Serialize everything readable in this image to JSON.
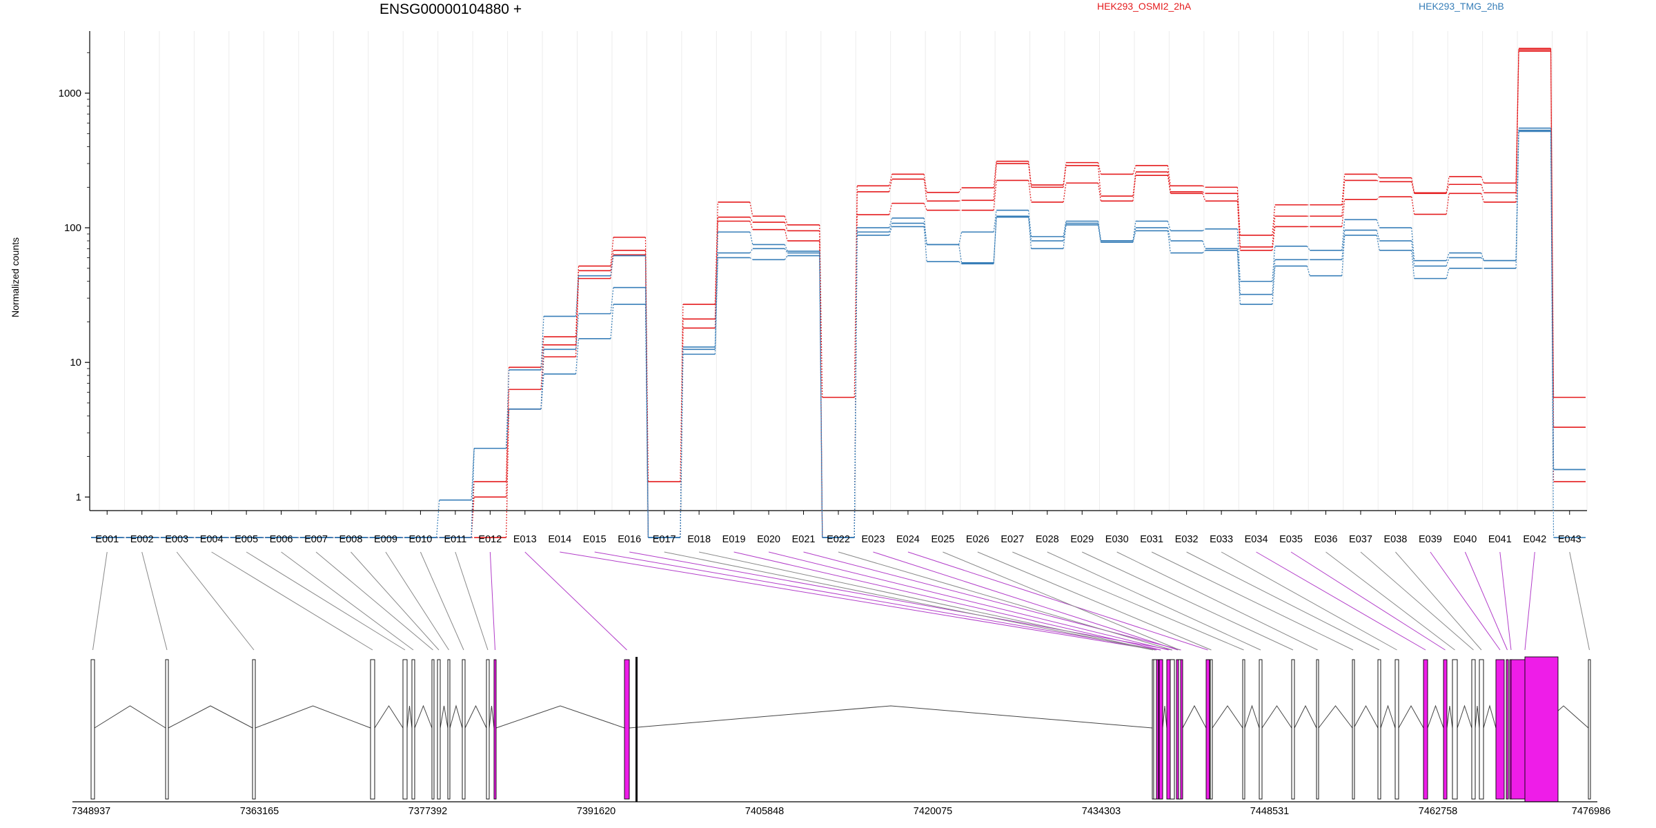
{
  "chart_data": {
    "type": "line",
    "title": "ENSG00000104880 +",
    "ylabel": "Normalized counts",
    "yscale": "log",
    "y_ticks": [
      1,
      10,
      100,
      1000
    ],
    "y_tick_labels": [
      "1",
      "10",
      "100",
      "1000"
    ],
    "categories": [
      "E001",
      "E002",
      "E003",
      "E004",
      "E005",
      "E006",
      "E007",
      "E008",
      "E009",
      "E010",
      "E011",
      "E012",
      "E013",
      "E014",
      "E015",
      "E016",
      "E017",
      "E018",
      "E019",
      "E020",
      "E021",
      "E022",
      "E023",
      "E024",
      "E025",
      "E026",
      "E027",
      "E028",
      "E029",
      "E030",
      "E031",
      "E032",
      "E033",
      "E034",
      "E035",
      "E036",
      "E037",
      "E038",
      "E039",
      "E040",
      "E041",
      "E042",
      "E043"
    ],
    "legend": [
      "HEK293_OSMI2_2hA",
      "HEK293_TMG_2hB"
    ],
    "series_colors": {
      "HEK293_OSMI2_2hA": "#e41a1c",
      "HEK293_TMG_2hB": "#377eb8"
    },
    "series": [
      {
        "group": "HEK293_OSMI2_2hA",
        "values": [
          0.5,
          0.5,
          0.5,
          0.5,
          0.5,
          0.5,
          0.5,
          0.5,
          0.5,
          0.5,
          0.5,
          1.3,
          9.2,
          15.5,
          52,
          85,
          1.3,
          27,
          155,
          122,
          105,
          5.5,
          205,
          250,
          183,
          198,
          312,
          208,
          305,
          250,
          290,
          205,
          200,
          88,
          148,
          148,
          250,
          235,
          182,
          240,
          215,
          2150,
          5.5
        ]
      },
      {
        "group": "HEK293_OSMI2_2hA",
        "values": [
          0.5,
          0.5,
          0.5,
          0.5,
          0.5,
          0.5,
          0.5,
          0.5,
          0.5,
          0.5,
          0.5,
          1.0,
          6.3,
          13.5,
          48,
          68,
          0.5,
          21,
          120,
          110,
          95,
          0.5,
          185,
          230,
          158,
          160,
          300,
          200,
          290,
          172,
          260,
          185,
          180,
          72,
          122,
          122,
          225,
          220,
          180,
          210,
          182,
          2100,
          3.3
        ]
      },
      {
        "group": "HEK293_OSMI2_2hA",
        "values": [
          0.5,
          0.5,
          0.5,
          0.5,
          0.5,
          0.5,
          0.5,
          0.5,
          0.5,
          0.5,
          0.5,
          0.5,
          4.5,
          11.0,
          42,
          63,
          0.5,
          18,
          112,
          97,
          80,
          0.5,
          125,
          152,
          135,
          135,
          225,
          155,
          215,
          158,
          245,
          180,
          158,
          68,
          102,
          102,
          162,
          170,
          126,
          180,
          155,
          2050,
          1.3
        ]
      },
      {
        "group": "HEK293_TMG_2hB",
        "values": [
          0.5,
          0.5,
          0.5,
          0.5,
          0.5,
          0.5,
          0.5,
          0.5,
          0.5,
          0.5,
          0.5,
          2.3,
          8.8,
          22,
          44,
          62,
          0.5,
          13,
          93,
          75,
          67,
          0.5,
          100,
          118,
          75,
          93,
          135,
          86,
          112,
          80,
          112,
          95,
          98,
          40,
          73,
          68,
          115,
          100,
          57,
          65,
          57,
          550,
          1.6
        ]
      },
      {
        "group": "HEK293_TMG_2hB",
        "values": [
          0.5,
          0.5,
          0.5,
          0.5,
          0.5,
          0.5,
          0.5,
          0.5,
          0.5,
          0.5,
          0.95,
          2.3,
          4.5,
          12.5,
          23,
          36,
          0.5,
          12.5,
          65,
          70,
          65,
          0.5,
          93,
          108,
          75,
          55,
          122,
          80,
          108,
          80,
          100,
          80,
          70,
          32,
          58,
          58,
          96,
          80,
          52,
          60,
          57,
          530,
          1.6
        ]
      },
      {
        "group": "HEK293_TMG_2hB",
        "values": [
          0.5,
          0.5,
          0.5,
          0.5,
          0.5,
          0.5,
          0.5,
          0.5,
          0.5,
          0.5,
          0.5,
          2.3,
          4.5,
          8.2,
          15,
          27,
          0.5,
          11.5,
          60,
          58,
          62,
          0.5,
          88,
          102,
          56,
          54,
          120,
          70,
          105,
          78,
          95,
          65,
          68,
          27,
          52,
          44,
          88,
          68,
          42,
          50,
          50,
          520,
          0.5
        ]
      }
    ],
    "genomic_axis_ticks": [
      "7348937",
      "7363165",
      "7377392",
      "7391620",
      "7405848",
      "7420075",
      "7434303",
      "7448531",
      "7462758",
      "7476986"
    ],
    "gene_model": {
      "highlight_color": "#ee1de8",
      "highlighted_exons": [
        "E012",
        "E013",
        "E014",
        "E015",
        "E016",
        "E019",
        "E020",
        "E021",
        "E023",
        "E024",
        "E034",
        "E035",
        "E039",
        "E040",
        "E041",
        "E042"
      ]
    }
  }
}
